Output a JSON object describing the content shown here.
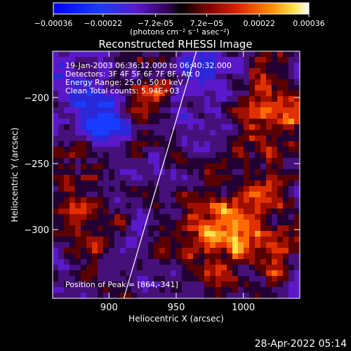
{
  "chart_data": {
    "type": "heatmap",
    "title": "Reconstructed RHESSI Image",
    "xlabel": "Heliocentric X (arcsec)",
    "ylabel": "Heliocentric Y (arcsec)",
    "xlim": [
      858,
      1042
    ],
    "ylim": [
      -352,
      -165
    ],
    "x_ticks": [
      900,
      950,
      1000
    ],
    "y_ticks": [
      -200,
      -250,
      -300
    ],
    "colorbar": {
      "range": [
        -0.00036,
        0.00036
      ],
      "tick_values": [
        -0.00036,
        -0.00022,
        -7.2e-05,
        7.2e-05,
        0.00022,
        0.00036
      ],
      "tick_labels": [
        "-0.00036",
        "-0.00022",
        "-7.2e-05",
        "7.2e-05",
        "0.00022",
        "0.00036"
      ],
      "units_label": "(photons cm⁻² s⁻¹ asec⁻²)"
    },
    "annotations": [
      "19-Jan-2003 06:36:12.000 to 06:40:32.000",
      "Detectors: 3F 4F 5F 6F 7F 8F, Att 0",
      "Energy Range: 25.0 - 50.0 keV",
      "Clean     Total counts: 5.94E+03"
    ],
    "peak_label": "Position of Peak = [864,-341]",
    "limb_line": {
      "from": [
        911,
        -352
      ],
      "to": [
        965,
        -165
      ]
    },
    "grid": false,
    "legend": "none"
  },
  "footer_timestamp": "28-Apr-2022 05:14"
}
